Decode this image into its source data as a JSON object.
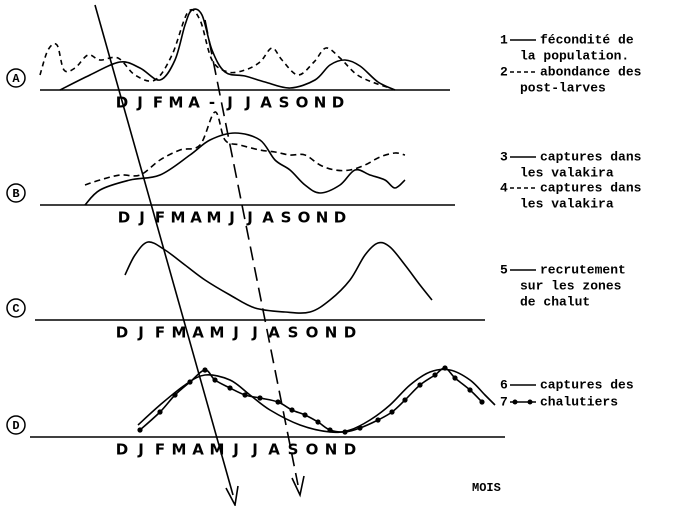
{
  "panels": [
    {
      "letter": "A",
      "months": [
        "D",
        "J",
        "F",
        "M",
        "A",
        "-",
        "J",
        "J",
        "A",
        "S",
        "O",
        "N",
        "D"
      ]
    },
    {
      "letter": "B",
      "months": [
        "D",
        "J",
        "F",
        "M",
        "A",
        "M",
        "J",
        "J",
        "A",
        "S",
        "O",
        "N",
        "D"
      ]
    },
    {
      "letter": "C",
      "months": [
        "D",
        "J",
        "F",
        "M",
        "A",
        "M",
        "J",
        "J",
        "A",
        "S",
        "O",
        "N",
        "D"
      ]
    },
    {
      "letter": "D",
      "months": [
        "D",
        "J",
        "F",
        "M",
        "A",
        "M",
        "J",
        "J",
        "A",
        "S",
        "O",
        "N",
        "D"
      ]
    }
  ],
  "legend": [
    {
      "number": "1",
      "style": "solid",
      "lines": [
        "fécondité de",
        "la population."
      ]
    },
    {
      "number": "2",
      "style": "dashed",
      "lines": [
        "abondance des",
        "post-larves"
      ]
    },
    {
      "number": "3",
      "style": "solid",
      "lines": [
        "captures dans",
        "les valakira"
      ]
    },
    {
      "number": "4",
      "style": "dashed",
      "lines": [
        "captures dans",
        "les valakira"
      ]
    },
    {
      "number": "5",
      "style": "solid",
      "lines": [
        "recrutement",
        "sur les zones",
        "de chalut"
      ]
    },
    {
      "number": "6",
      "style": "solid",
      "lines": [
        "captures des"
      ]
    },
    {
      "number": "7",
      "style": "dotted",
      "lines": [
        "chalutiers"
      ]
    }
  ],
  "axis_label": "MOIS"
}
